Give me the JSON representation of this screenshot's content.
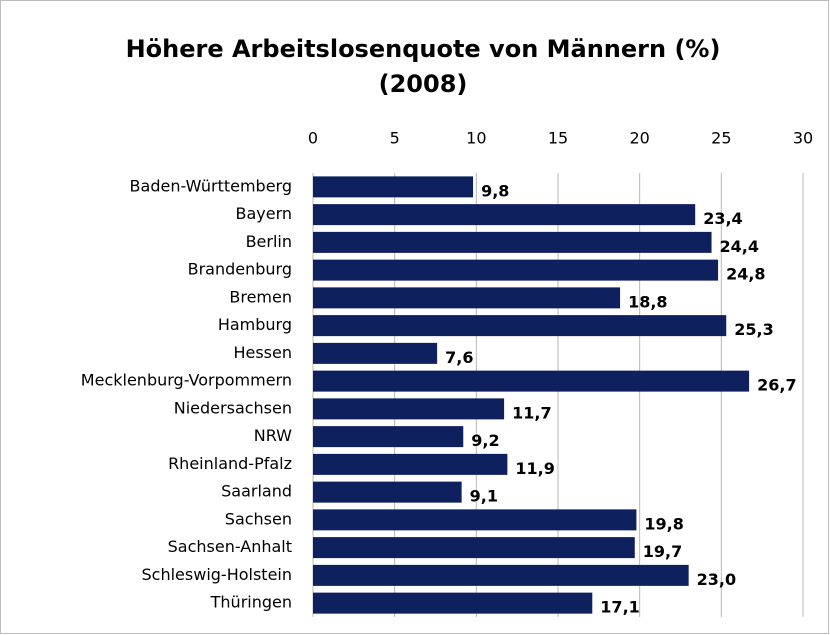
{
  "chart_data": {
    "type": "bar",
    "orientation": "horizontal",
    "title": [
      "Höhere Arbeitslosenquote von Männern (%)",
      "(2008)"
    ],
    "categories": [
      "Baden-Württemberg",
      "Bayern",
      "Berlin",
      "Brandenburg",
      "Bremen",
      "Hamburg",
      "Hessen",
      "Mecklenburg-Vorpommern",
      "Niedersachsen",
      "NRW",
      "Rheinland-Pfalz",
      "Saarland",
      "Sachsen",
      "Sachsen-Anhalt",
      "Schleswig-Holstein",
      "Thüringen"
    ],
    "values": [
      9.8,
      23.4,
      24.4,
      24.8,
      18.8,
      25.3,
      7.6,
      26.7,
      11.7,
      9.2,
      11.9,
      9.1,
      19.8,
      19.7,
      23.0,
      17.1
    ],
    "value_labels": [
      "9,8",
      "23,4",
      "24,4",
      "24,8",
      "18,8",
      "25,3",
      "7,6",
      "26,7",
      "11,7",
      "9,2",
      "11,9",
      "9,1",
      "19,8",
      "19,7",
      "23,0",
      "17,1"
    ],
    "color": "#0f205e",
    "xlim": [
      0,
      30
    ],
    "xticks": [
      0,
      5,
      10,
      15,
      20,
      25,
      30
    ],
    "grid": true
  }
}
